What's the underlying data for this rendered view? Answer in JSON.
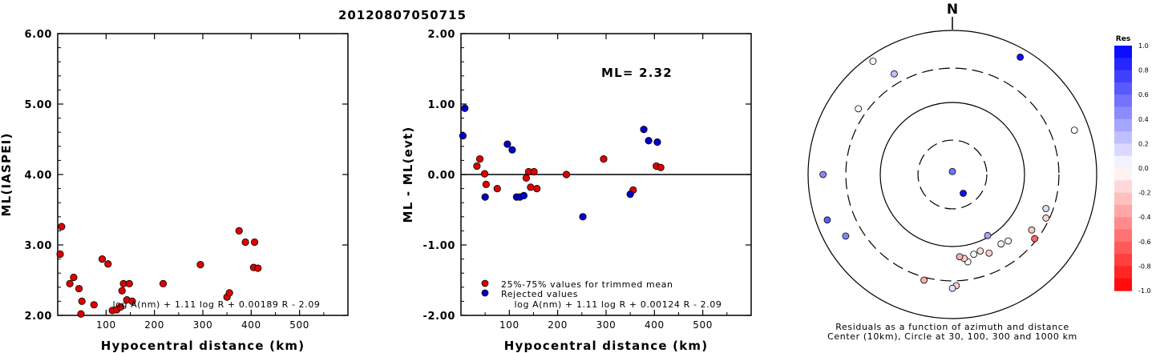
{
  "figure": {
    "event_id": "20120807050715"
  },
  "colors": {
    "trimmed": "#dd0000",
    "rejected": "#0000cc"
  },
  "chart_data": [
    {
      "type": "scatter",
      "xlabel": "Hypocentral distance (km)",
      "ylabel": "ML(IASPEI)",
      "xlim": [
        0,
        600
      ],
      "ylim": [
        2.0,
        6.0
      ],
      "x_ticks": [
        "100",
        "200",
        "300",
        "400",
        "500"
      ],
      "y_ticks": [
        "2.00",
        "3.00",
        "4.00",
        "5.00",
        "6.00"
      ],
      "formula": "log A(nm) + 1.11 log R + 0.00189 R - 2.09",
      "series": [
        {
          "color": "#dd0000",
          "points": [
            [
              5,
              2.87
            ],
            [
              8,
              3.26
            ],
            [
              25,
              2.45
            ],
            [
              33,
              2.54
            ],
            [
              44,
              2.38
            ],
            [
              48,
              2.02
            ],
            [
              50,
              2.2
            ],
            [
              75,
              2.15
            ],
            [
              92,
              2.8
            ],
            [
              104,
              2.73
            ],
            [
              113,
              2.07
            ],
            [
              122,
              2.08
            ],
            [
              130,
              2.12
            ],
            [
              133,
              2.35
            ],
            [
              136,
              2.45
            ],
            [
              143,
              2.22
            ],
            [
              148,
              2.45
            ],
            [
              154,
              2.2
            ],
            [
              218,
              2.45
            ],
            [
              295,
              2.72
            ],
            [
              350,
              2.26
            ],
            [
              355,
              2.32
            ],
            [
              375,
              3.2
            ],
            [
              388,
              3.04
            ],
            [
              405,
              2.68
            ],
            [
              407,
              3.04
            ],
            [
              414,
              2.67
            ]
          ]
        }
      ]
    },
    {
      "type": "scatter",
      "xlabel": "Hypocentral distance (km)",
      "ylabel": "ML - ML(evt)",
      "xlim": [
        0,
        600
      ],
      "ylim": [
        -2.0,
        2.0
      ],
      "x_ticks": [
        "100",
        "200",
        "300",
        "400",
        "500"
      ],
      "y_ticks": [
        "-2.00",
        "-1.00",
        "0.00",
        "1.00",
        "2.00"
      ],
      "annotation": "ML= 2.32",
      "formula": "log A(nm) + 1.11 log R + 0.00124 R - 2.09",
      "legend": {
        "placement": "bottom-left",
        "entries": [
          "25%-75% values for trimmed mean",
          "Rejected values"
        ]
      },
      "series": [
        {
          "name": "25%-75% values for trimmed mean",
          "color": "#dd0000",
          "points": [
            [
              33,
              0.12
            ],
            [
              39,
              0.22
            ],
            [
              49,
              0.01
            ],
            [
              52,
              -0.14
            ],
            [
              75,
              -0.2
            ],
            [
              135,
              -0.05
            ],
            [
              140,
              0.04
            ],
            [
              144,
              -0.18
            ],
            [
              151,
              0.04
            ],
            [
              157,
              -0.2
            ],
            [
              218,
              0.0
            ],
            [
              295,
              0.22
            ],
            [
              356,
              -0.22
            ],
            [
              404,
              0.12
            ],
            [
              413,
              0.1
            ]
          ]
        },
        {
          "name": "Rejected values",
          "color": "#0000cc",
          "points": [
            [
              4,
              0.55
            ],
            [
              8,
              0.94
            ],
            [
              50,
              -0.32
            ],
            [
              96,
              0.43
            ],
            [
              106,
              0.35
            ],
            [
              115,
              -0.32
            ],
            [
              122,
              -0.32
            ],
            [
              130,
              -0.3
            ],
            [
              252,
              -0.6
            ],
            [
              350,
              -0.28
            ],
            [
              378,
              0.64
            ],
            [
              388,
              0.48
            ],
            [
              406,
              0.46
            ]
          ]
        }
      ]
    },
    {
      "type": "polar",
      "north_label": "N",
      "caption_line1": "Residuals as a function of azimuth and distance",
      "caption_line2": "Center (10km), Circle at 30, 100, 300 and 1000 km",
      "colorbar": {
        "title": "Res",
        "tick_labels": [
          "1.0",
          "0.8",
          "0.6",
          "0.4",
          "0.2",
          "0.0",
          "-0.2",
          "-0.4",
          "-0.6",
          "-0.8",
          "-1.0"
        ]
      },
      "stations": [
        {
          "az": 30,
          "dist": 760,
          "res": 0.94
        },
        {
          "az": 325,
          "dist": 830,
          "res": 0.0
        },
        {
          "az": 330,
          "dist": 410,
          "res": 0.25
        },
        {
          "az": 305,
          "dist": 390,
          "res": 0.0
        },
        {
          "az": 70,
          "dist": 630,
          "res": 0.0
        },
        {
          "az": 270,
          "dist": 620,
          "res": 0.46
        },
        {
          "az": 250,
          "dist": 700,
          "res": 0.64
        },
        {
          "az": 240,
          "dist": 510,
          "res": 0.48
        },
        {
          "az": 110,
          "dist": 240,
          "res": 0.15
        },
        {
          "az": 115,
          "dist": 270,
          "res": -0.18
        },
        {
          "az": 125,
          "dist": 220,
          "res": -0.22
        },
        {
          "az": 140,
          "dist": 160,
          "res": 0.04
        },
        {
          "az": 145,
          "dist": 150,
          "res": -0.05
        },
        {
          "az": 150,
          "dist": 95,
          "res": 0.35
        },
        {
          "az": 155,
          "dist": 160,
          "res": -0.2
        },
        {
          "az": 128,
          "dist": 280,
          "res": -0.6
        },
        {
          "az": 160,
          "dist": 135,
          "res": -0.14
        },
        {
          "az": 165,
          "dist": 140,
          "res": 0.0
        },
        {
          "az": 170,
          "dist": 170,
          "res": 0.01
        },
        {
          "az": 172,
          "dist": 150,
          "res": -0.2
        },
        {
          "az": 175,
          "dist": 140,
          "res": -0.32
        },
        {
          "az": 195,
          "dist": 330,
          "res": -0.32
        },
        {
          "az": 178,
          "dist": 350,
          "res": -0.2
        },
        {
          "az": 180,
          "dist": 380,
          "res": 0.12
        },
        {
          "az": 0,
          "dist": 11,
          "res": 0.55
        },
        {
          "az": 150,
          "dist": 20,
          "res": 0.94
        }
      ]
    }
  ]
}
